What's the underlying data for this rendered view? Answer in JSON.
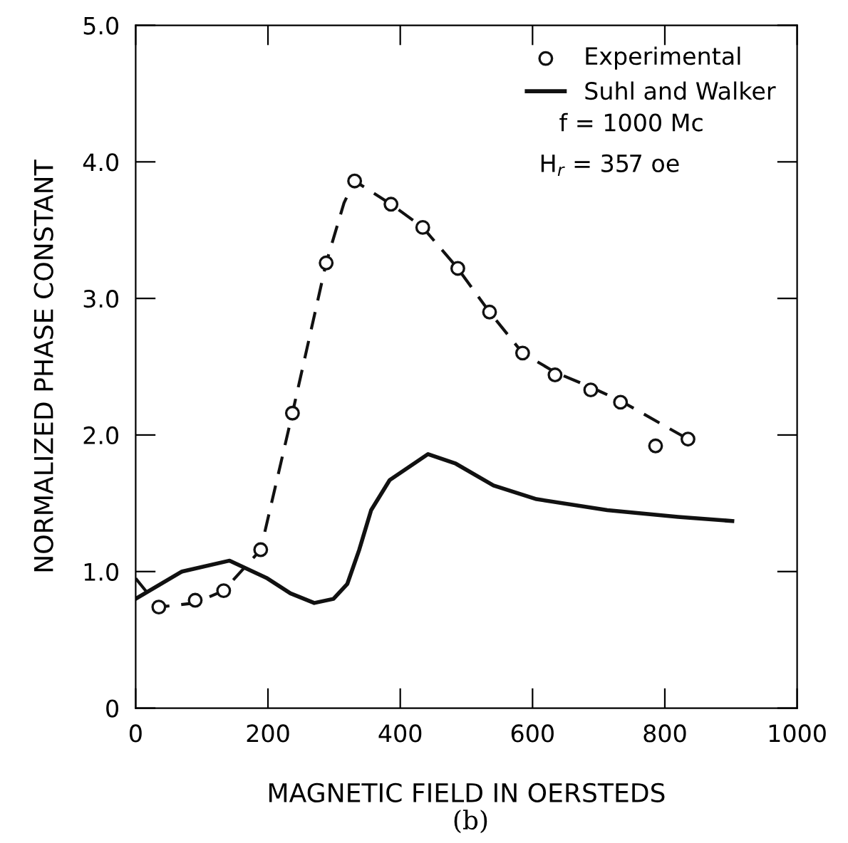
{
  "chart_data": {
    "type": "line",
    "xlabel": "MAGNETIC FIELD IN OERSTEDS",
    "ylabel": "NORMALIZED PHASE CONSTANT",
    "xlim": [
      0,
      1000
    ],
    "ylim": [
      0,
      5
    ],
    "xticks": [
      0,
      200,
      400,
      600,
      800,
      1000
    ],
    "yticks": [
      0,
      {
        "value": 1,
        "label": "1.0"
      },
      {
        "value": 2,
        "label": "2.0"
      },
      {
        "value": 3,
        "label": "3.0"
      },
      {
        "value": 4,
        "label": "4.0"
      },
      {
        "value": 5,
        "label": "5.0"
      }
    ],
    "grid": false,
    "legend": "top right",
    "annotations": [
      "f = 1000 Mc",
      "H$_{r}$ = 357 oe",
      "(b)"
    ],
    "series": [
      {
        "color": "#111111",
        "line_style": "dashed",
        "marker": "none",
        "x": [
          0,
          35,
          90,
          133,
          189,
          237,
          288,
          315,
          331,
          386,
          434,
          487,
          535,
          585,
          634,
          688,
          733,
          835
        ],
        "values": [
          0.95,
          0.74,
          0.77,
          0.86,
          1.16,
          2.16,
          3.26,
          3.7,
          3.86,
          3.69,
          3.52,
          3.22,
          2.9,
          2.6,
          2.46,
          2.35,
          2.25,
          1.97
        ]
      },
      {
        "type": "scatter",
        "name": "Experimental",
        "color": "#111111",
        "marker": "circle",
        "x": [
          35,
          90,
          133,
          189,
          237,
          288,
          331,
          386,
          434,
          487,
          535,
          585,
          634,
          688,
          733,
          786,
          835
        ],
        "values": [
          0.74,
          0.79,
          0.86,
          1.16,
          2.16,
          3.26,
          3.86,
          3.69,
          3.52,
          3.22,
          2.9,
          2.6,
          2.44,
          2.33,
          2.24,
          1.92,
          1.97
        ]
      },
      {
        "name": "Suhl and Walker",
        "color": "#111111",
        "line_style": "solid",
        "marker": "none",
        "x": [
          0,
          70,
          142,
          199,
          234,
          270,
          299,
          320,
          338,
          356,
          384,
          442,
          484,
          541,
          606,
          713,
          820,
          902
        ],
        "values": [
          0.8,
          1.0,
          1.08,
          0.95,
          0.84,
          0.77,
          0.8,
          0.91,
          1.16,
          1.45,
          1.67,
          1.86,
          1.79,
          1.63,
          1.53,
          1.45,
          1.4,
          1.37
        ]
      }
    ]
  }
}
